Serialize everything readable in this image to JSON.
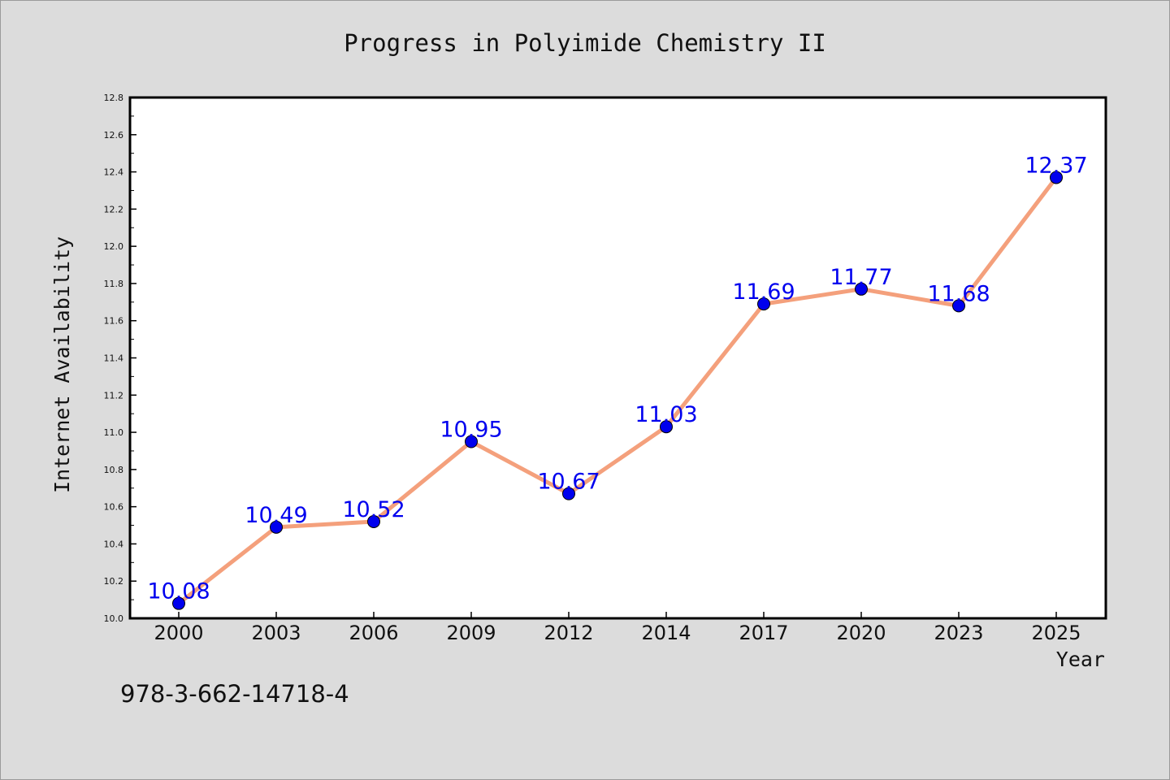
{
  "chart_data": {
    "type": "line",
    "title": "Progress in Polyimide Chemistry II",
    "xlabel": "Year",
    "ylabel": "Internet Availability",
    "categories": [
      "2000",
      "2003",
      "2006",
      "2009",
      "2012",
      "2014",
      "2017",
      "2020",
      "2023",
      "2025"
    ],
    "series": [
      {
        "values": [
          10.08,
          10.49,
          10.52,
          10.95,
          10.67,
          11.03,
          11.69,
          11.77,
          11.68,
          12.37
        ],
        "labels": [
          "10.08",
          "10.49",
          "10.52",
          "10.95",
          "10.67",
          "11.03",
          "11.69",
          "11.77",
          "11.68",
          "12.37"
        ],
        "line_color": "#f4a07c",
        "marker_color": "#0000ee"
      }
    ],
    "ylim": [
      10.0,
      12.8
    ],
    "yticks": [
      "10.0",
      "10.2",
      "10.4",
      "10.6",
      "10.8",
      "11.0",
      "11.2",
      "11.4",
      "11.6",
      "11.8",
      "12.0",
      "12.2",
      "12.4",
      "12.6",
      "12.8"
    ],
    "grid": false,
    "legend": "none"
  },
  "footer": {
    "isbn": "978-3-662-14718-4"
  },
  "colors": {
    "background": "#dcdcdc",
    "plot_background": "#ffffff",
    "label_color": "#0000ee"
  }
}
